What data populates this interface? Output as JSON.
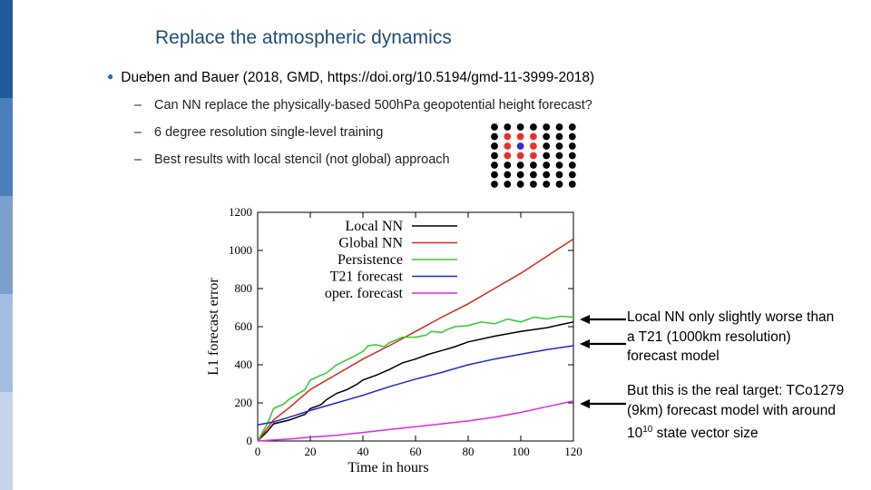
{
  "slide": {
    "title": "Replace the atmospheric dynamics",
    "bullet": "Dueben and Bauer (2018, GMD, https://doi.org/10.5194/gmd-11-3999-2018)",
    "sub_bullets": [
      "Can NN replace the physically-based 500hPa geopotential height forecast?",
      "6 degree resolution single-level training",
      "Best results with local stencil (not global) approach"
    ],
    "annotation_1": "Local NN only slightly worse than a T21 (1000km resolution) forecast model",
    "annotation_2": {
      "text_before": "But this is the real target: TCo1279 (9km) forecast model with around 10",
      "exponent": "10",
      "text_after": " state vector size"
    }
  },
  "colors": {
    "title": "#1f4e79",
    "sidebar": [
      "#1f5c99",
      "#4a7fb8",
      "#7aa0cc",
      "#a3bde0",
      "#c5d4ea"
    ],
    "stencil_black": "#000000",
    "stencil_red": "#e8302a",
    "stencil_blue": "#3c28c8"
  },
  "stencil": {
    "rows": 7,
    "cols": 7,
    "red_cells": [
      [
        1,
        1
      ],
      [
        1,
        2
      ],
      [
        1,
        3
      ],
      [
        2,
        1
      ],
      [
        2,
        3
      ],
      [
        3,
        1
      ],
      [
        3,
        2
      ],
      [
        3,
        3
      ]
    ],
    "center_cell": [
      2,
      2
    ]
  },
  "chart_data": {
    "type": "line",
    "xlabel": "Time in hours",
    "ylabel": "L1 forecast error",
    "xlim": [
      0,
      120
    ],
    "ylim": [
      0,
      1200
    ],
    "x_ticks": [
      0,
      20,
      40,
      60,
      80,
      100,
      120
    ],
    "y_ticks": [
      0,
      200,
      400,
      600,
      800,
      1000,
      1200
    ],
    "legend_position": "top-right",
    "series": [
      {
        "name": "Local NN",
        "color": "#000000",
        "x": [
          0,
          4,
          6,
          12,
          15,
          18,
          20,
          24,
          26,
          30,
          34,
          38,
          40,
          45,
          50,
          55,
          60,
          65,
          70,
          75,
          80,
          90,
          100,
          110,
          115,
          120
        ],
        "y": [
          0,
          55,
          90,
          110,
          125,
          140,
          170,
          190,
          215,
          250,
          270,
          300,
          320,
          345,
          375,
          410,
          430,
          455,
          475,
          495,
          520,
          550,
          575,
          595,
          610,
          625
        ]
      },
      {
        "name": "Global NN",
        "color": "#d42a1e",
        "x": [
          0,
          6,
          12,
          20,
          30,
          40,
          50,
          60,
          70,
          80,
          90,
          100,
          110,
          120
        ],
        "y": [
          0,
          110,
          175,
          270,
          350,
          430,
          500,
          575,
          650,
          720,
          800,
          880,
          970,
          1060
        ]
      },
      {
        "name": "Persistence",
        "color": "#2ecc2e",
        "x": [
          0,
          4,
          6,
          10,
          12,
          18,
          20,
          24,
          26,
          30,
          36,
          40,
          42,
          45,
          48,
          50,
          55,
          60,
          64,
          66,
          70,
          72,
          75,
          80,
          85,
          90,
          95,
          100,
          105,
          110,
          115,
          120
        ],
        "y": [
          0,
          100,
          170,
          195,
          220,
          270,
          320,
          345,
          355,
          400,
          440,
          470,
          500,
          505,
          495,
          515,
          545,
          545,
          555,
          575,
          570,
          585,
          600,
          605,
          625,
          615,
          640,
          625,
          650,
          640,
          655,
          650
        ]
      },
      {
        "name": "T21 forecast",
        "color": "#1a2bcc",
        "x": [
          0,
          6,
          12,
          20,
          30,
          40,
          50,
          60,
          70,
          80,
          90,
          100,
          110,
          120
        ],
        "y": [
          85,
          100,
          125,
          160,
          200,
          240,
          285,
          325,
          360,
          400,
          430,
          455,
          480,
          500
        ]
      },
      {
        "name": "oper. forecast",
        "color": "#e028e0",
        "x": [
          0,
          6,
          12,
          20,
          30,
          40,
          50,
          60,
          70,
          80,
          90,
          100,
          110,
          120
        ],
        "y": [
          0,
          5,
          10,
          20,
          30,
          45,
          60,
          75,
          90,
          105,
          125,
          150,
          180,
          210
        ]
      }
    ]
  }
}
